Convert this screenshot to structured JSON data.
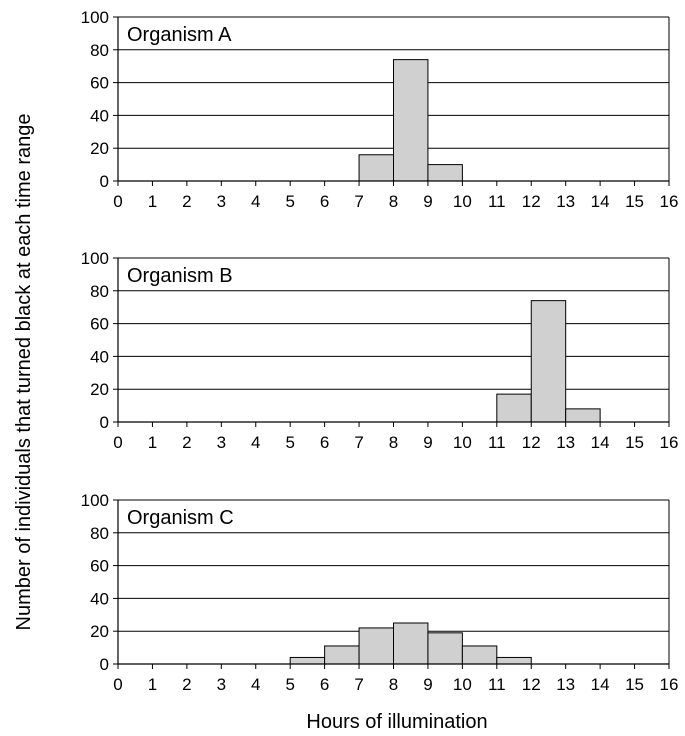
{
  "chart_data": [
    {
      "type": "bar",
      "title": "Organism A",
      "xlabel": "Hours of illumination",
      "ylabel": "Number of individuals that turned black at each time range",
      "bin_edges": [
        7,
        8,
        9,
        10
      ],
      "values": [
        16,
        74,
        10
      ],
      "xlim": [
        0,
        16
      ],
      "ylim": [
        0,
        100
      ],
      "yticks": [
        0,
        20,
        40,
        60,
        80,
        100
      ],
      "xticks": [
        0,
        1,
        2,
        3,
        4,
        5,
        6,
        7,
        8,
        9,
        10,
        11,
        12,
        13,
        14,
        15,
        16
      ],
      "grid": true,
      "bar_color": "#d0d0d0"
    },
    {
      "type": "bar",
      "title": "Organism B",
      "xlabel": "Hours of illumination",
      "ylabel": "Number of individuals that turned black at each time range",
      "bin_edges": [
        11,
        12,
        13,
        14
      ],
      "values": [
        17,
        74,
        8
      ],
      "xlim": [
        0,
        16
      ],
      "ylim": [
        0,
        100
      ],
      "yticks": [
        0,
        20,
        40,
        60,
        80,
        100
      ],
      "xticks": [
        0,
        1,
        2,
        3,
        4,
        5,
        6,
        7,
        8,
        9,
        10,
        11,
        12,
        13,
        14,
        15,
        16
      ],
      "grid": true,
      "bar_color": "#d0d0d0"
    },
    {
      "type": "bar",
      "title": "Organism C",
      "xlabel": "Hours of illumination",
      "ylabel": "Number of individuals that turned black at each time range",
      "bin_edges": [
        5,
        6,
        7,
        8,
        9,
        10,
        11,
        12
      ],
      "values": [
        4,
        11,
        22,
        25,
        19,
        11,
        4
      ],
      "xlim": [
        0,
        16
      ],
      "ylim": [
        0,
        100
      ],
      "yticks": [
        0,
        20,
        40,
        60,
        80,
        100
      ],
      "xticks": [
        0,
        1,
        2,
        3,
        4,
        5,
        6,
        7,
        8,
        9,
        10,
        11,
        12,
        13,
        14,
        15,
        16
      ],
      "grid": true,
      "bar_color": "#d0d0d0"
    }
  ],
  "figure": {
    "ylabel": "Number of individuals that turned black at each time range",
    "xlabel": "Hours of illumination"
  }
}
